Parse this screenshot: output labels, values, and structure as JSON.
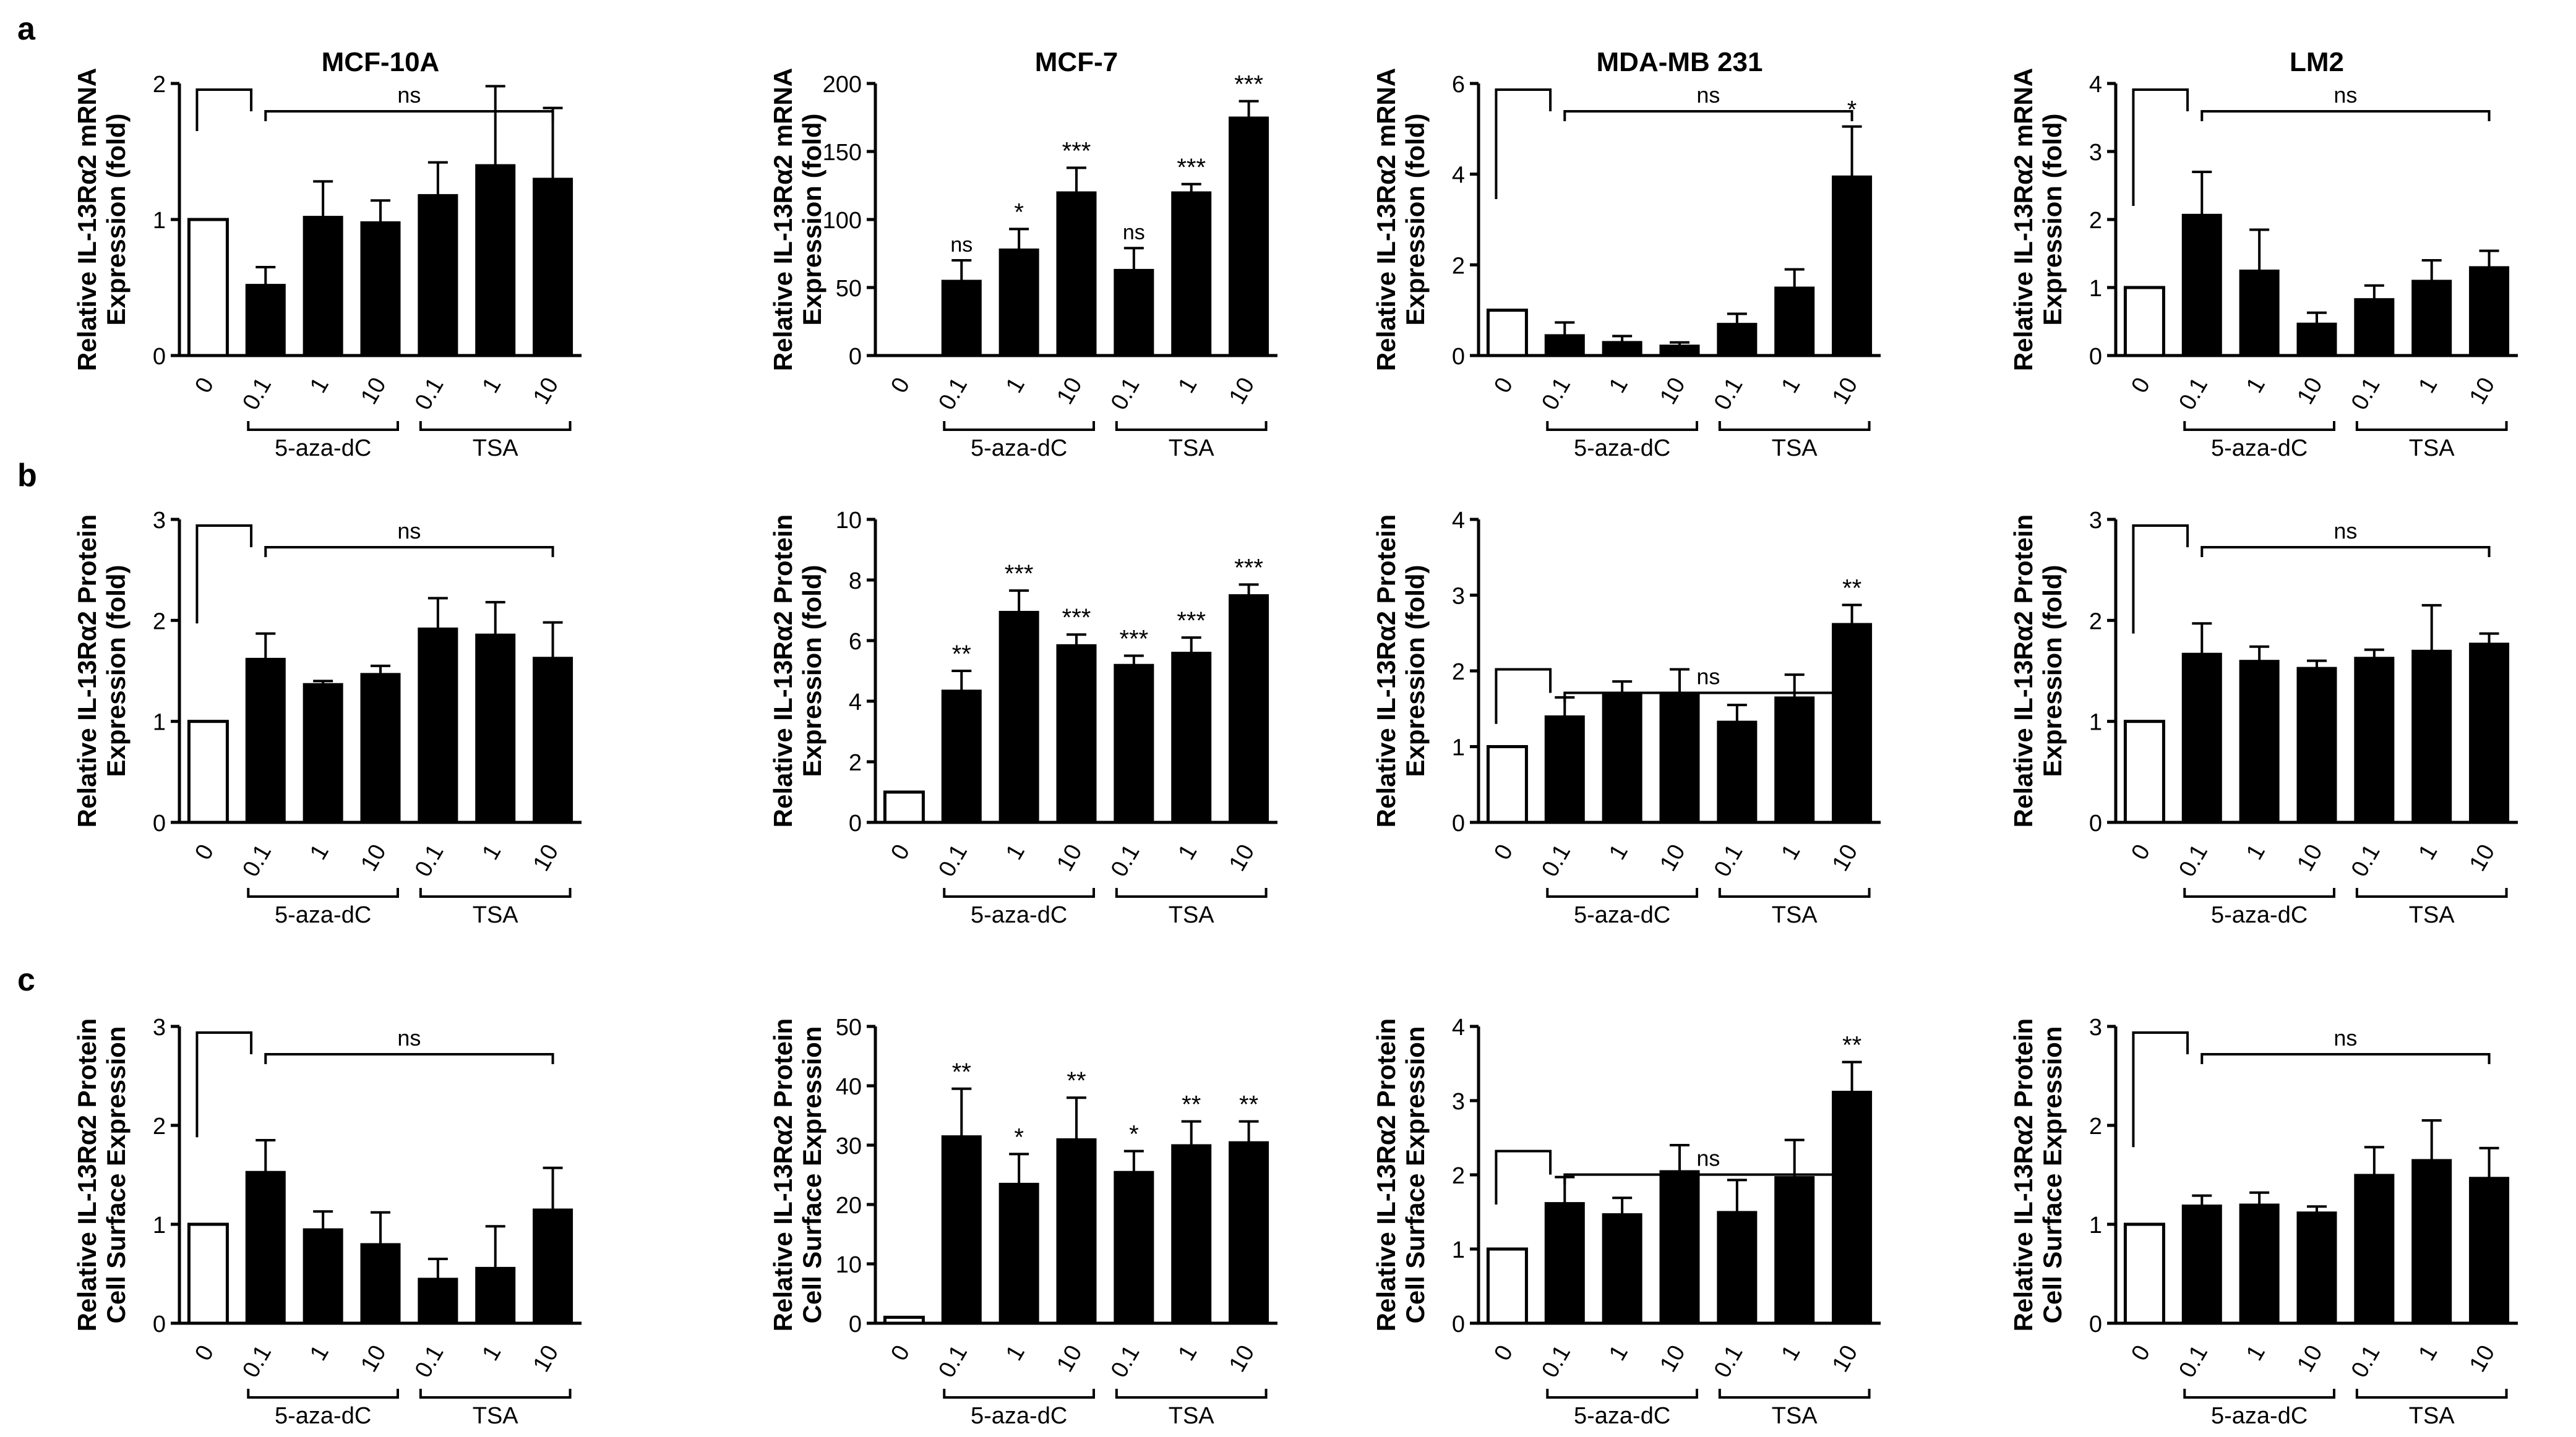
{
  "figure": {
    "group_labels": {
      "aza": "5-aza-dC",
      "tsa": "TSA",
      "ns": "ns"
    }
  },
  "x_tick_labels": [
    "0",
    "0.1",
    "1",
    "10",
    "0.1",
    "1",
    "10"
  ],
  "rows": [
    {
      "letter": "a",
      "ylabel_line1": "Relative IL-13Rα2 mRNA",
      "ylabel_line2": "Expression (fold)"
    },
    {
      "letter": "b",
      "ylabel_line1": "Relative IL-13Rα2 Protein",
      "ylabel_line2": "Expression (fold)"
    },
    {
      "letter": "c",
      "ylabel_line1": "Relative IL-13Rα2 Protein",
      "ylabel_line2": "Cell Surface Expression"
    }
  ],
  "chart_data": [
    {
      "type": "bar",
      "row": "a",
      "title": "MCF-10A",
      "categories": [
        "0",
        "0.1",
        "1",
        "10",
        "0.1",
        "1",
        "10"
      ],
      "values": [
        1,
        0.52,
        1.02,
        0.98,
        1.18,
        1.4,
        1.3
      ],
      "errors": [
        0,
        0.13,
        0.26,
        0.16,
        0.24,
        0.58,
        0.52
      ],
      "ylim": [
        0,
        2
      ],
      "yticks": [
        "0",
        "1",
        "2"
      ],
      "sig": [
        "",
        "",
        "",
        "",
        "",
        "",
        ""
      ],
      "bracket_top_value": 1.65,
      "ns_bracket": "top"
    },
    {
      "type": "bar",
      "row": "a",
      "title": "MCF-7",
      "categories": [
        "0",
        "0.1",
        "1",
        "10",
        "0.1",
        "1",
        "10"
      ],
      "values": [
        0,
        55,
        78,
        120,
        63,
        120,
        175
      ],
      "errors": [
        0,
        15,
        15,
        18,
        16,
        6,
        12
      ],
      "ylim": [
        0,
        200
      ],
      "yticks": [
        "0",
        "50",
        "100",
        "150",
        "200"
      ],
      "sig": [
        "",
        "ns",
        "*",
        "***",
        "ns",
        "***",
        "***"
      ]
    },
    {
      "type": "bar",
      "row": "a",
      "title": "MDA-MB 231",
      "categories": [
        "0",
        "0.1",
        "1",
        "10",
        "0.1",
        "1",
        "10"
      ],
      "values": [
        1,
        0.45,
        0.3,
        0.22,
        0.7,
        1.5,
        3.95
      ],
      "errors": [
        0,
        0.28,
        0.13,
        0.07,
        0.22,
        0.4,
        1.1
      ],
      "ylim": [
        0,
        6
      ],
      "yticks": [
        "0",
        "2",
        "4",
        "6"
      ],
      "sig": [
        "",
        "",
        "",
        "",
        "",
        "",
        "*"
      ],
      "bracket_top_value": 3.45,
      "ns_bracket": "top"
    },
    {
      "type": "bar",
      "row": "a",
      "title": "LM2",
      "categories": [
        "0",
        "0.1",
        "1",
        "10",
        "0.1",
        "1",
        "10"
      ],
      "values": [
        1,
        2.07,
        1.25,
        0.47,
        0.83,
        1.1,
        1.3
      ],
      "errors": [
        0,
        0.63,
        0.6,
        0.16,
        0.2,
        0.3,
        0.24
      ],
      "ylim": [
        0,
        4
      ],
      "yticks": [
        "0",
        "1",
        "2",
        "3",
        "4"
      ],
      "sig": [
        "",
        "",
        "",
        "",
        "",
        "",
        ""
      ],
      "bracket_top_value": 2.2,
      "ns_bracket": "top"
    },
    {
      "type": "bar",
      "row": "b",
      "title": "",
      "categories": [
        "0",
        "0.1",
        "1",
        "10",
        "0.1",
        "1",
        "10"
      ],
      "values": [
        1,
        1.62,
        1.37,
        1.47,
        1.92,
        1.86,
        1.63
      ],
      "errors": [
        0,
        0.25,
        0.03,
        0.08,
        0.3,
        0.32,
        0.35
      ],
      "ylim": [
        0,
        3
      ],
      "yticks": [
        "0",
        "1",
        "2",
        "3"
      ],
      "sig": [
        "",
        "",
        "",
        "",
        "",
        "",
        ""
      ],
      "bracket_top_value": 1.97,
      "ns_bracket": "top"
    },
    {
      "type": "bar",
      "row": "b",
      "title": "",
      "categories": [
        "0",
        "0.1",
        "1",
        "10",
        "0.1",
        "1",
        "10"
      ],
      "values": [
        1,
        4.35,
        6.95,
        5.85,
        5.2,
        5.6,
        7.5
      ],
      "errors": [
        0,
        0.65,
        0.7,
        0.35,
        0.3,
        0.5,
        0.35
      ],
      "ylim": [
        0,
        10
      ],
      "yticks": [
        "0",
        "2",
        "4",
        "6",
        "8",
        "10"
      ],
      "sig": [
        "",
        "**",
        "***",
        "***",
        "***",
        "***",
        "***"
      ]
    },
    {
      "type": "bar",
      "row": "b",
      "title": "",
      "categories": [
        "0",
        "0.1",
        "1",
        "10",
        "0.1",
        "1",
        "10"
      ],
      "values": [
        1,
        1.4,
        1.7,
        1.7,
        1.33,
        1.65,
        2.62
      ],
      "errors": [
        0,
        0.25,
        0.16,
        0.32,
        0.22,
        0.3,
        0.25
      ],
      "ylim": [
        0,
        4
      ],
      "yticks": [
        "0",
        "1",
        "2",
        "3",
        "4"
      ],
      "sig": [
        "",
        "",
        "",
        "",
        "",
        "",
        "**"
      ],
      "bracket_top_value": 1.3,
      "ns_bracket": "low"
    },
    {
      "type": "bar",
      "row": "b",
      "title": "",
      "categories": [
        "0",
        "0.1",
        "1",
        "10",
        "0.1",
        "1",
        "10"
      ],
      "values": [
        1,
        1.67,
        1.6,
        1.53,
        1.63,
        1.7,
        1.77
      ],
      "errors": [
        0,
        0.3,
        0.14,
        0.07,
        0.08,
        0.45,
        0.1
      ],
      "ylim": [
        0,
        3
      ],
      "yticks": [
        "0",
        "1",
        "2",
        "3"
      ],
      "sig": [
        "",
        "",
        "",
        "",
        "",
        "",
        ""
      ],
      "bracket_top_value": 1.87,
      "ns_bracket": "top"
    },
    {
      "type": "bar",
      "row": "c",
      "title": "",
      "categories": [
        "0",
        "0.1",
        "1",
        "10",
        "0.1",
        "1",
        "10"
      ],
      "values": [
        1,
        1.53,
        0.95,
        0.8,
        0.45,
        0.56,
        1.15
      ],
      "errors": [
        0,
        0.32,
        0.18,
        0.32,
        0.2,
        0.42,
        0.42
      ],
      "ylim": [
        0,
        3
      ],
      "yticks": [
        "0",
        "1",
        "2",
        "3"
      ],
      "sig": [
        "",
        "",
        "",
        "",
        "",
        "",
        ""
      ],
      "bracket_top_value": 1.88,
      "ns_bracket": "top"
    },
    {
      "type": "bar",
      "row": "c",
      "title": "",
      "categories": [
        "0",
        "0.1",
        "1",
        "10",
        "0.1",
        "1",
        "10"
      ],
      "values": [
        1,
        31.5,
        23.5,
        31,
        25.5,
        30,
        30.5
      ],
      "errors": [
        0,
        8,
        5,
        7,
        3.5,
        4,
        3.5
      ],
      "ylim": [
        0,
        50
      ],
      "yticks": [
        "0",
        "10",
        "20",
        "30",
        "40",
        "50"
      ],
      "sig": [
        "",
        "**",
        "*",
        "**",
        "*",
        "**",
        "**"
      ]
    },
    {
      "type": "bar",
      "row": "c",
      "title": "",
      "categories": [
        "0",
        "0.1",
        "1",
        "10",
        "0.1",
        "1",
        "10"
      ],
      "values": [
        1,
        1.62,
        1.47,
        2.05,
        1.5,
        1.97,
        3.12
      ],
      "errors": [
        0,
        0.35,
        0.22,
        0.35,
        0.43,
        0.5,
        0.4
      ],
      "ylim": [
        0,
        4
      ],
      "yticks": [
        "0",
        "1",
        "2",
        "3",
        "4"
      ],
      "sig": [
        "",
        "",
        "",
        "",
        "",
        "",
        "**"
      ],
      "bracket_top_value": 1.6,
      "ns_bracket": "low"
    },
    {
      "type": "bar",
      "row": "c",
      "title": "",
      "categories": [
        "0",
        "0.1",
        "1",
        "10",
        "0.1",
        "1",
        "10"
      ],
      "values": [
        1,
        1.19,
        1.2,
        1.12,
        1.5,
        1.65,
        1.47
      ],
      "errors": [
        0,
        0.1,
        0.12,
        0.06,
        0.28,
        0.4,
        0.3
      ],
      "ylim": [
        0,
        3
      ],
      "yticks": [
        "0",
        "1",
        "2",
        "3"
      ],
      "sig": [
        "",
        "",
        "",
        "",
        "",
        "",
        ""
      ],
      "bracket_top_value": 1.78,
      "ns_bracket": "top"
    }
  ]
}
